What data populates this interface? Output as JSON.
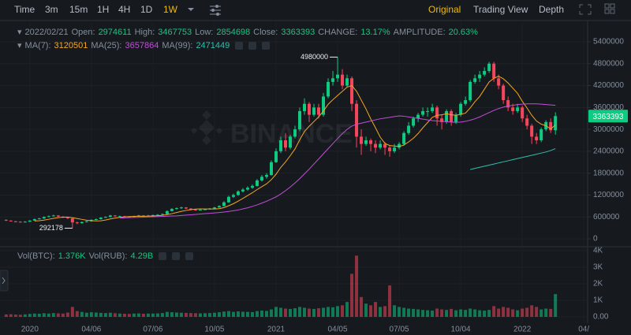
{
  "toolbar": {
    "intervals": [
      "Time",
      "3m",
      "15m",
      "1H",
      "4H",
      "1D",
      "1W"
    ],
    "views": [
      "Original",
      "Trading View",
      "Depth"
    ]
  },
  "chart_data": {
    "type": "candlestick",
    "header": {
      "date": "2022/02/21",
      "labels": [
        "Open:",
        "High:",
        "Low:",
        "Close:"
      ],
      "change_label": "CHANGE:",
      "change": "13.17%",
      "amplitude_label": "AMPLITUDE:",
      "amplitude": "20.63%"
    },
    "watermark": "BINANCE",
    "up_color": "#0ecb81",
    "down_color": "#f6465d",
    "grid": true,
    "xlim": [
      -1.3,
      122.8
    ],
    "xticks": [
      {
        "value": 5,
        "label": "2020"
      },
      {
        "value": 18,
        "label": "04/06"
      },
      {
        "value": 31,
        "label": "07/06"
      },
      {
        "value": 44,
        "label": "10/05"
      },
      {
        "value": 57,
        "label": "2021"
      },
      {
        "value": 70,
        "label": "04/05"
      },
      {
        "value": 83,
        "label": "07/05"
      },
      {
        "value": 96,
        "label": "10/04"
      },
      {
        "value": 109,
        "label": "2022"
      },
      {
        "value": 122,
        "label": "04/"
      }
    ],
    "ylim": [
      -216000,
      5832000
    ],
    "yticks": [
      0,
      600000,
      1200000,
      1800000,
      2400000,
      3000000,
      3600000,
      4200000,
      4800000,
      5400000
    ],
    "candles": [
      [
        520000,
        535000,
        490000,
        500000
      ],
      [
        500000,
        510000,
        470000,
        480000
      ],
      [
        480000,
        490000,
        455000,
        470000
      ],
      [
        470000,
        480000,
        445000,
        460000
      ],
      [
        460000,
        485000,
        450000,
        470000
      ],
      [
        470000,
        510000,
        465000,
        500000
      ],
      [
        500000,
        555000,
        495000,
        540000
      ],
      [
        540000,
        575000,
        530000,
        560000
      ],
      [
        560000,
        615000,
        550000,
        600000
      ],
      [
        600000,
        640000,
        590000,
        620000
      ],
      [
        620000,
        660000,
        610000,
        640000
      ],
      [
        640000,
        650000,
        600000,
        610000
      ],
      [
        610000,
        620000,
        570000,
        580000
      ],
      [
        580000,
        590000,
        545000,
        560000
      ],
      [
        560000,
        570000,
        292178,
        450000
      ],
      [
        450000,
        470000,
        400000,
        430000
      ],
      [
        430000,
        475000,
        420000,
        460000
      ],
      [
        460000,
        495000,
        450000,
        480000
      ],
      [
        480000,
        535000,
        470000,
        520000
      ],
      [
        520000,
        555000,
        510000,
        540000
      ],
      [
        540000,
        595000,
        530000,
        580000
      ],
      [
        580000,
        615000,
        570000,
        600000
      ],
      [
        600000,
        655000,
        590000,
        640000
      ],
      [
        640000,
        650000,
        605000,
        620000
      ],
      [
        620000,
        635000,
        605000,
        620000
      ],
      [
        620000,
        630000,
        600000,
        610000
      ],
      [
        610000,
        620000,
        590000,
        600000
      ],
      [
        600000,
        635000,
        590000,
        620000
      ],
      [
        620000,
        655000,
        610000,
        640000
      ],
      [
        640000,
        650000,
        610000,
        620000
      ],
      [
        620000,
        655000,
        610000,
        640000
      ],
      [
        640000,
        665000,
        630000,
        650000
      ],
      [
        650000,
        675000,
        640000,
        660000
      ],
      [
        660000,
        695000,
        650000,
        680000
      ],
      [
        680000,
        780000,
        670000,
        760000
      ],
      [
        760000,
        840000,
        750000,
        820000
      ],
      [
        820000,
        860000,
        800000,
        840000
      ],
      [
        840000,
        880000,
        820000,
        860000
      ],
      [
        860000,
        870000,
        815000,
        830000
      ],
      [
        830000,
        840000,
        780000,
        800000
      ],
      [
        800000,
        815000,
        770000,
        790000
      ],
      [
        790000,
        815000,
        780000,
        800000
      ],
      [
        800000,
        825000,
        790000,
        810000
      ],
      [
        810000,
        845000,
        800000,
        830000
      ],
      [
        830000,
        875000,
        820000,
        860000
      ],
      [
        860000,
        920000,
        850000,
        900000
      ],
      [
        900000,
        1030000,
        890000,
        1000000
      ],
      [
        1000000,
        1180000,
        990000,
        1150000
      ],
      [
        1150000,
        1240000,
        1120000,
        1200000
      ],
      [
        1200000,
        1330000,
        1180000,
        1300000
      ],
      [
        1300000,
        1390000,
        1270000,
        1350000
      ],
      [
        1350000,
        1440000,
        1320000,
        1400000
      ],
      [
        1400000,
        1490000,
        1370000,
        1450000
      ],
      [
        1450000,
        1640000,
        1430000,
        1600000
      ],
      [
        1600000,
        1750000,
        1570000,
        1700000
      ],
      [
        1700000,
        1800000,
        1650000,
        1750000
      ],
      [
        1750000,
        2150000,
        1730000,
        2100000
      ],
      [
        2100000,
        2480000,
        2080000,
        2400000
      ],
      [
        2400000,
        2800000,
        2350000,
        2700000
      ],
      [
        2700000,
        2900000,
        2400000,
        2500000
      ],
      [
        2500000,
        2850000,
        2450000,
        2800000
      ],
      [
        2800000,
        3100000,
        2750000,
        3000000
      ],
      [
        3000000,
        3600000,
        2950000,
        3500000
      ],
      [
        3500000,
        3850000,
        3400000,
        3700000
      ],
      [
        3700000,
        3750000,
        3200000,
        3400000
      ],
      [
        3400000,
        3700000,
        3350000,
        3600000
      ],
      [
        3600000,
        3700000,
        3300000,
        3400000
      ],
      [
        3400000,
        4000000,
        3350000,
        3900000
      ],
      [
        3900000,
        4400000,
        3850000,
        4300000
      ],
      [
        4300000,
        4600000,
        4200000,
        4400000
      ],
      [
        4400000,
        4980000,
        4300000,
        4500000
      ],
      [
        4500000,
        4650000,
        4100000,
        4200000
      ],
      [
        4200000,
        4500000,
        4150000,
        4400000
      ],
      [
        4400000,
        4450000,
        3500000,
        3700000
      ],
      [
        3700000,
        3800000,
        2500000,
        2800000
      ],
      [
        2800000,
        3000000,
        2300000,
        2600000
      ],
      [
        2600000,
        2800000,
        2550000,
        2700000
      ],
      [
        2700000,
        2750000,
        2400000,
        2600000
      ],
      [
        2600000,
        2700000,
        2350000,
        2500000
      ],
      [
        2500000,
        2700000,
        2450000,
        2600000
      ],
      [
        2600000,
        2650000,
        2300000,
        2500000
      ],
      [
        2500000,
        2550000,
        2250000,
        2400000
      ],
      [
        2400000,
        2600000,
        2350000,
        2500000
      ],
      [
        2500000,
        2650000,
        2450000,
        2600000
      ],
      [
        2600000,
        2950000,
        2550000,
        2900000
      ],
      [
        2900000,
        3200000,
        2850000,
        3100000
      ],
      [
        3100000,
        3350000,
        3050000,
        3300000
      ],
      [
        3300000,
        3450000,
        3200000,
        3400000
      ],
      [
        3400000,
        3600000,
        3350000,
        3500000
      ],
      [
        3500000,
        3600000,
        3350000,
        3500000
      ],
      [
        3500000,
        3700000,
        3450000,
        3600000
      ],
      [
        3600000,
        3650000,
        3100000,
        3300000
      ],
      [
        3300000,
        3400000,
        3000000,
        3200000
      ],
      [
        3200000,
        3550000,
        3150000,
        3500000
      ],
      [
        3500000,
        3550000,
        3100000,
        3200000
      ],
      [
        3200000,
        3450000,
        3150000,
        3400000
      ],
      [
        3400000,
        3750000,
        3350000,
        3700000
      ],
      [
        3700000,
        3900000,
        3650000,
        3800000
      ],
      [
        3800000,
        4350000,
        3750000,
        4300000
      ],
      [
        4300000,
        4500000,
        4250000,
        4400000
      ],
      [
        4400000,
        4600000,
        4300000,
        4500000
      ],
      [
        4500000,
        4700000,
        4450000,
        4600000
      ],
      [
        4600000,
        4850000,
        4550000,
        4800000
      ],
      [
        4800000,
        4850000,
        4300000,
        4400000
      ],
      [
        4400000,
        4500000,
        4100000,
        4200000
      ],
      [
        4200000,
        4250000,
        3700000,
        3800000
      ],
      [
        3800000,
        3900000,
        3500000,
        3600000
      ],
      [
        3600000,
        3700000,
        3400000,
        3500000
      ],
      [
        3500000,
        3700000,
        3450000,
        3600000
      ],
      [
        3600000,
        3650000,
        3200000,
        3300000
      ],
      [
        3300000,
        3400000,
        3000000,
        3100000
      ],
      [
        3100000,
        3150000,
        2600000,
        2800000
      ],
      [
        2800000,
        2900000,
        2600000,
        2700000
      ],
      [
        2700000,
        3050000,
        2650000,
        3000000
      ],
      [
        3000000,
        3250000,
        2950000,
        3200000
      ],
      [
        3200000,
        3300000,
        2900000,
        2974611
      ],
      [
        2974611,
        3467753,
        2854698,
        3363393
      ]
    ],
    "moving_averages": [
      {
        "name": "MA(7):",
        "color": "#f5a623",
        "values": [
          null,
          null,
          null,
          null,
          null,
          null,
          489000,
          497000,
          514000,
          536000,
          561000,
          581000,
          593000,
          596000,
          580000,
          556000,
          533000,
          510000,
          497000,
          491000,
          494000,
          516000,
          546000,
          569000,
          589000,
          601000,
          610000,
          616000,
          621000,
          619000,
          621000,
          626000,
          633000,
          644000,
          664000,
          690000,
          721000,
          753000,
          779000,
          799000,
          814000,
          820000,
          819000,
          817000,
          817000,
          827000,
          856000,
          907000,
          964000,
          1034000,
          1109000,
          1186000,
          1264000,
          1350000,
          1429000,
          1507000,
          1621000,
          1771000,
          1957000,
          2107000,
          2279000,
          2464000,
          2714000,
          2943000,
          3086000,
          3214000,
          3343000,
          3500000,
          3686000,
          3814000,
          3929000,
          4043000,
          4157000,
          4200000,
          4043000,
          3800000,
          3557000,
          3286000,
          3043000,
          2786000,
          2614000,
          2557000,
          2543000,
          2529000,
          2571000,
          2657000,
          2757000,
          2886000,
          3043000,
          3186000,
          3329000,
          3386000,
          3400000,
          3429000,
          3400000,
          3386000,
          3414000,
          3443000,
          3586000,
          3757000,
          3900000,
          4100000,
          4300000,
          4400000,
          4457000,
          4386000,
          4271000,
          4129000,
          3986000,
          3771000,
          3586000,
          3386000,
          3229000,
          3143000,
          3100000,
          3011000,
          3120501
        ]
      },
      {
        "name": "MA(25):",
        "color": "#c14ed6",
        "values": [
          null,
          null,
          null,
          null,
          null,
          null,
          null,
          null,
          null,
          null,
          null,
          null,
          null,
          null,
          null,
          null,
          null,
          null,
          null,
          null,
          null,
          null,
          null,
          null,
          570000,
          575000,
          580000,
          585000,
          590000,
          595000,
          600000,
          605000,
          610000,
          615000,
          620000,
          625000,
          630000,
          640000,
          650000,
          660000,
          670000,
          680000,
          690000,
          700000,
          710000,
          720000,
          735000,
          750000,
          770000,
          790000,
          820000,
          850000,
          890000,
          930000,
          980000,
          1030000,
          1090000,
          1150000,
          1230000,
          1320000,
          1420000,
          1530000,
          1650000,
          1780000,
          1910000,
          2050000,
          2190000,
          2330000,
          2470000,
          2610000,
          2750000,
          2880000,
          3000000,
          3090000,
          3140000,
          3170000,
          3200000,
          3230000,
          3260000,
          3290000,
          3310000,
          3330000,
          3350000,
          3370000,
          3360000,
          3340000,
          3320000,
          3300000,
          3280000,
          3260000,
          3240000,
          3230000,
          3220000,
          3210000,
          3200000,
          3190000,
          3200000,
          3220000,
          3250000,
          3290000,
          3340000,
          3400000,
          3460000,
          3520000,
          3570000,
          3610000,
          3640000,
          3660000,
          3680000,
          3690000,
          3700000,
          3700000,
          3700000,
          3690000,
          3680000,
          3670000,
          3657864
        ]
      },
      {
        "name": "MA(99):",
        "color": "#2ebfb0",
        "values": [
          null,
          null,
          null,
          null,
          null,
          null,
          null,
          null,
          null,
          null,
          null,
          null,
          null,
          null,
          null,
          null,
          null,
          null,
          null,
          null,
          null,
          null,
          null,
          null,
          null,
          null,
          null,
          null,
          null,
          null,
          null,
          null,
          null,
          null,
          null,
          null,
          null,
          null,
          null,
          null,
          null,
          null,
          null,
          null,
          null,
          null,
          null,
          null,
          null,
          null,
          null,
          null,
          null,
          null,
          null,
          null,
          null,
          null,
          null,
          null,
          null,
          null,
          null,
          null,
          null,
          null,
          null,
          null,
          null,
          null,
          null,
          null,
          null,
          null,
          null,
          null,
          null,
          null,
          null,
          null,
          null,
          null,
          null,
          null,
          null,
          null,
          null,
          null,
          null,
          null,
          null,
          null,
          null,
          null,
          null,
          null,
          null,
          null,
          1900000,
          1930000,
          1960000,
          1990000,
          2020000,
          2050000,
          2080000,
          2110000,
          2140000,
          2170000,
          2200000,
          2230000,
          2260000,
          2290000,
          2320000,
          2350000,
          2380000,
          2420000,
          2471449
        ]
      }
    ],
    "volume": {
      "name": "Vol(BTC):",
      "last_label": "1.376K",
      "second_name": "Vol(RUB):",
      "second_label": "4.29B",
      "ylim": [
        -381,
        4143
      ],
      "yticks": [
        {
          "value": 0,
          "label": "0.00"
        },
        {
          "value": 1000,
          "label": "1K"
        },
        {
          "value": 2000,
          "label": "2K"
        },
        {
          "value": 3000,
          "label": "3K"
        },
        {
          "value": 4000,
          "label": "4K"
        }
      ],
      "values": [
        150,
        160,
        140,
        130,
        150,
        180,
        200,
        190,
        220,
        200,
        230,
        210,
        200,
        260,
        600,
        350,
        300,
        250,
        280,
        260,
        240,
        230,
        250,
        220,
        200,
        190,
        180,
        200,
        210,
        190,
        200,
        200,
        210,
        230,
        300,
        280,
        260,
        250,
        240,
        230,
        220,
        210,
        220,
        230,
        250,
        280,
        320,
        350,
        300,
        330,
        310,
        300,
        290,
        350,
        380,
        360,
        450,
        600,
        550,
        500,
        480,
        520,
        600,
        550,
        500,
        480,
        520,
        550,
        600,
        580,
        650,
        700,
        900,
        2600,
        3700,
        1200,
        800,
        700,
        900,
        600,
        650,
        1900,
        700,
        600,
        550,
        500,
        480,
        450,
        420,
        400,
        380,
        500,
        450,
        420,
        480,
        400,
        450,
        420,
        500,
        450,
        400,
        380,
        420,
        650,
        500,
        600,
        550,
        450,
        400,
        500,
        550,
        700,
        600,
        450,
        500,
        480,
        1376
      ]
    }
  }
}
